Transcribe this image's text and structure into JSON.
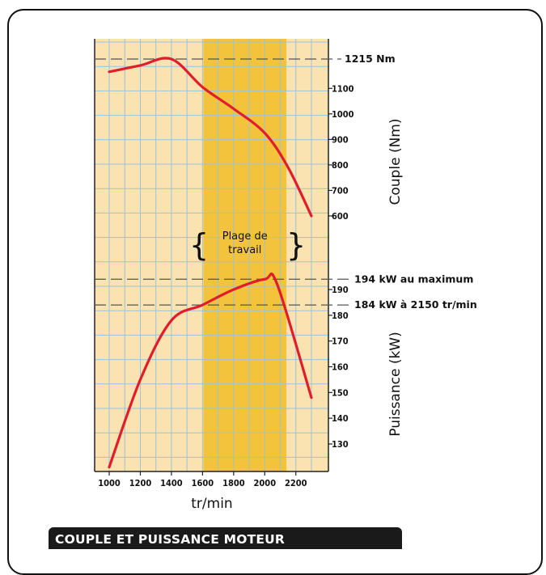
{
  "caption": "COUPLE ET PUISSANCE MOTEUR",
  "chart_data": {
    "type": "line",
    "x_label": "tr/min",
    "x_ticks": [
      1000,
      1200,
      1400,
      1600,
      1800,
      2000,
      2200
    ],
    "xlim": [
      900,
      2350
    ],
    "working_range": {
      "label_line1": "Plage de",
      "label_line2": "travail",
      "from": 1600,
      "to": 2150
    },
    "torque": {
      "axis_label": "Couple (Nm)",
      "unit": "Nm",
      "ticks": [
        600,
        700,
        800,
        900,
        1000,
        1100
      ],
      "ylim": [
        600,
        1215
      ],
      "x": [
        1000,
        1200,
        1400,
        1600,
        1800,
        2000,
        2150,
        2300
      ],
      "y": [
        1165,
        1190,
        1215,
        1105,
        1020,
        925,
        790,
        600
      ],
      "max_line": {
        "value": 1215,
        "label": "1215 Nm"
      }
    },
    "power": {
      "axis_label": "Puissance (kW)",
      "unit": "kW",
      "ticks": [
        130,
        140,
        150,
        160,
        170,
        180,
        190
      ],
      "ylim": [
        130,
        190
      ],
      "x": [
        1000,
        1200,
        1400,
        1600,
        1800,
        2000,
        2080,
        2300
      ],
      "y": [
        121,
        155,
        178,
        184,
        190,
        194,
        192,
        148
      ],
      "reference_lines": [
        {
          "value": 194,
          "label": "194 kW au maximum"
        },
        {
          "value": 184,
          "label": "184 kW à 2150 tr/min"
        }
      ]
    },
    "colors": {
      "background": "#FAE3B0",
      "band": "#F3C33C",
      "grid": "#9BC3DC",
      "curve": "#E11D2B",
      "dash": "#555555"
    }
  }
}
